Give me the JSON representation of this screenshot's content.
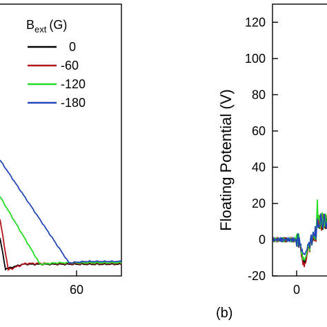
{
  "chart_data": [
    {
      "type": "line",
      "panel_label": "",
      "xlabel": "",
      "ylabel": "",
      "x_ticks": [
        60
      ],
      "legend": {
        "title_main": "B",
        "title_sub": "ext",
        "title_unit": "(G)",
        "placement": "top-right"
      },
      "series": [
        {
          "name": "0",
          "color": "#000000"
        },
        {
          "name": "-60",
          "color": "#b5121b"
        },
        {
          "name": "-120",
          "color": "#22dd22"
        },
        {
          "name": "-180",
          "color": "#2447b8"
        }
      ]
    },
    {
      "type": "line",
      "panel_label": "(b)",
      "ylabel": "Floating Potential (V)",
      "xlabel": "",
      "ylim": [
        -20,
        130
      ],
      "y_ticks": [
        120,
        100,
        80,
        60,
        40,
        20,
        0,
        -20
      ],
      "x_ticks": [
        0
      ],
      "series": [
        {
          "name": "0",
          "color": "#000000"
        },
        {
          "name": "-60",
          "color": "#b5121b"
        },
        {
          "name": "-120",
          "color": "#22dd22"
        },
        {
          "name": "-180",
          "color": "#2447b8"
        }
      ]
    }
  ]
}
